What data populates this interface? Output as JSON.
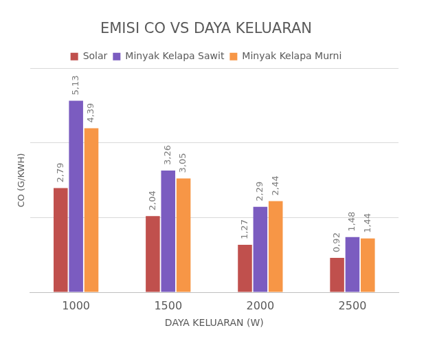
{
  "chart_data": {
    "type": "bar",
    "title": "EMISI CO VS DAYA KELUARAN",
    "x_label": "DAYA KELUARAN (W)",
    "y_label": "CO (G/KWH)",
    "categories": [
      "1000",
      "1500",
      "2000",
      "2500"
    ],
    "series": [
      {
        "name": "Solar",
        "color": "#c0504d",
        "values": [
          2.79,
          2.04,
          1.27,
          0.92
        ],
        "value_labels": [
          "2,79",
          "2,04",
          "1,27",
          "0,92"
        ]
      },
      {
        "name": "Minyak Kelapa Sawit",
        "color": "#7b5cc0",
        "values": [
          5.13,
          3.26,
          2.29,
          1.48
        ],
        "value_labels": [
          "5,13",
          "3,26",
          "2,29",
          "1,48"
        ]
      },
      {
        "name": "Minyak Kelapa Murni",
        "color": "#f79646",
        "values": [
          4.39,
          3.05,
          2.44,
          1.44
        ],
        "value_labels": [
          "4,39",
          "3,05",
          "2,44",
          "1,44"
        ]
      }
    ],
    "ylim": [
      0,
      6
    ],
    "yticks": [
      0,
      2,
      4,
      6
    ],
    "grid": true,
    "legend": "top",
    "data_labels": true,
    "tick_labels": "x"
  }
}
